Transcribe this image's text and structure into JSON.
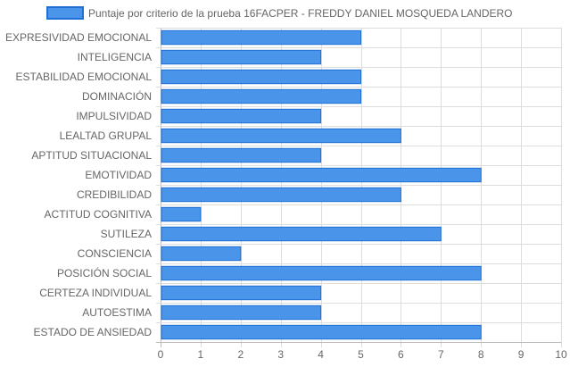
{
  "chart_data": {
    "type": "bar",
    "orientation": "horizontal",
    "legend": {
      "label": "Puntaje por criterio de la prueba 16FACPER - FREDDY DANIEL MOSQUEDA LANDERO",
      "position": "top"
    },
    "categories": [
      "EXPRESIVIDAD EMOCIONAL",
      "INTELIGENCIA",
      "ESTABILIDAD EMOCIONAL",
      "DOMINACIÓN",
      "IMPULSIVIDAD",
      "LEALTAD GRUPAL",
      "APTITUD SITUACIONAL",
      "EMOTIVIDAD",
      "CREDIBILIDAD",
      "ACTITUD COGNITIVA",
      "SUTILEZA",
      "CONSCIENCIA",
      "POSICIÓN SOCIAL",
      "CERTEZA INDIVIDUAL",
      "AUTOESTIMA",
      "ESTADO DE ANSIEDAD"
    ],
    "values": [
      5,
      4,
      5,
      5,
      4,
      6,
      4,
      8,
      6,
      1,
      7,
      2,
      8,
      4,
      4,
      8
    ],
    "xlim": [
      0,
      10
    ],
    "xticks": [
      "0",
      "1",
      "2",
      "3",
      "4",
      "5",
      "6",
      "7",
      "8",
      "9",
      "10"
    ],
    "grid": true,
    "colors": {
      "bar_fill": "#4a95ea",
      "bar_border": "#1f6fd6"
    }
  }
}
